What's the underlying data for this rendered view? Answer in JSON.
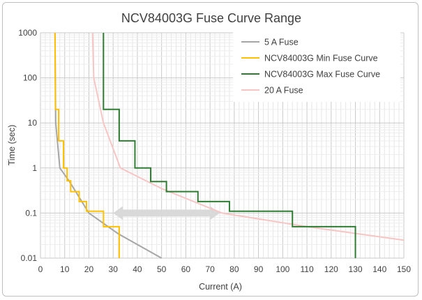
{
  "chart_data": {
    "type": "line",
    "title": "NCV84003G Fuse Curve Range",
    "xlabel": "Current (A)",
    "ylabel": "Time (sec)",
    "xlim": [
      0,
      150
    ],
    "ylim": [
      0.01,
      1000
    ],
    "y_scale": "log",
    "x_ticks": [
      "0",
      "10",
      "20",
      "30",
      "40",
      "50",
      "60",
      "70",
      "80",
      "90",
      "100",
      "110",
      "120",
      "130",
      "140",
      "150"
    ],
    "y_ticks": [
      "0.01",
      "0.1",
      "1",
      "10",
      "100",
      "1000"
    ],
    "grid": true,
    "legend_position": "top-right",
    "series": [
      {
        "name": "5 A Fuse",
        "color": "#a6a6a6",
        "points": [
          [
            6,
            1000
          ],
          [
            6.3,
            10
          ],
          [
            8,
            1
          ],
          [
            12,
            0.5
          ],
          [
            20,
            0.1
          ],
          [
            32,
            0.035
          ],
          [
            50,
            0.01
          ]
        ]
      },
      {
        "name": "NCV84003G Min Fuse Curve",
        "color": "#ffc000",
        "points": [
          [
            6,
            1000
          ],
          [
            6.2,
            20
          ],
          [
            7.5,
            20
          ],
          [
            7.5,
            4
          ],
          [
            9.5,
            4
          ],
          [
            9.5,
            1
          ],
          [
            11,
            1
          ],
          [
            11,
            0.52
          ],
          [
            12.5,
            0.52
          ],
          [
            12.5,
            0.3
          ],
          [
            16,
            0.3
          ],
          [
            16,
            0.18
          ],
          [
            19,
            0.18
          ],
          [
            19,
            0.11
          ],
          [
            26,
            0.11
          ],
          [
            26,
            0.05
          ],
          [
            32.5,
            0.05
          ],
          [
            32.5,
            0.01
          ]
        ]
      },
      {
        "name": "NCV84003G Max Fuse Curve",
        "color": "#2e7d32",
        "points": [
          [
            26,
            1000
          ],
          [
            26,
            20
          ],
          [
            32.5,
            20
          ],
          [
            32.5,
            4
          ],
          [
            39,
            4
          ],
          [
            39,
            1
          ],
          [
            45.5,
            1
          ],
          [
            45.5,
            0.5
          ],
          [
            52,
            0.5
          ],
          [
            52,
            0.3
          ],
          [
            65,
            0.3
          ],
          [
            65,
            0.18
          ],
          [
            78,
            0.18
          ],
          [
            78,
            0.11
          ],
          [
            104,
            0.11
          ],
          [
            104,
            0.05
          ],
          [
            130,
            0.05
          ],
          [
            130,
            0.01
          ]
        ]
      },
      {
        "name": "20 A Fuse",
        "color": "#f8c5c5",
        "points": [
          [
            21.5,
            1000
          ],
          [
            22,
            100
          ],
          [
            26,
            10
          ],
          [
            33,
            1
          ],
          [
            50,
            0.35
          ],
          [
            75,
            0.1
          ],
          [
            110,
            0.05
          ],
          [
            150,
            0.025
          ]
        ]
      }
    ],
    "annotations": [
      {
        "type": "double-arrow",
        "color": "#d9d9d9",
        "x_from": 30,
        "x_to": 74,
        "y": 0.1
      }
    ]
  }
}
